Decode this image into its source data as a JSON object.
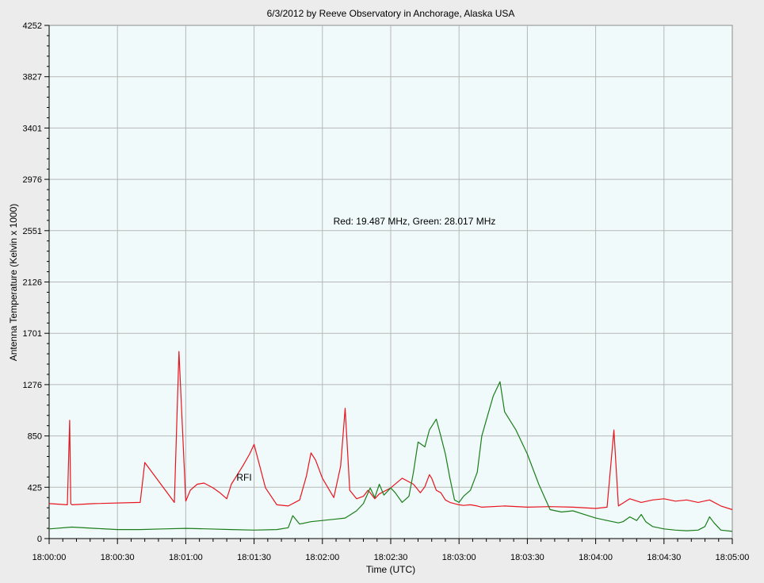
{
  "chart_data": {
    "type": "line",
    "title": "6/3/2012  by  Reeve Observatory  in  Anchorage, Alaska  USA",
    "xlabel": "Time (UTC)",
    "ylabel": "Antenna Temperature (Kelvin x 1000)",
    "annotation": "Red: 19.487 MHz, Green: 28.017 MHz",
    "rfi_label": "RFI",
    "x_ticks": [
      "18:00:00",
      "18:00:30",
      "18:01:00",
      "18:01:30",
      "18:02:00",
      "18:02:30",
      "18:03:00",
      "18:03:30",
      "18:04:00",
      "18:04:30",
      "18:05:00"
    ],
    "y_ticks": [
      "0",
      "425",
      "850",
      "1276",
      "1701",
      "2126",
      "2551",
      "2976",
      "3401",
      "3827",
      "4252"
    ],
    "xlim_seconds": [
      0,
      300
    ],
    "ylim": [
      0,
      4252
    ],
    "grid": true,
    "background_color": "#f0fafa",
    "series": [
      {
        "color": "#e8141e",
        "x_seconds": [
          0,
          8,
          9,
          9.5,
          10,
          20,
          40,
          42,
          55,
          57,
          60,
          62,
          65,
          68,
          70,
          72,
          75,
          78,
          80,
          85,
          88,
          90,
          95,
          100,
          105,
          110,
          113,
          115,
          117,
          120,
          125,
          128,
          130,
          132,
          135,
          138,
          140,
          141,
          143,
          145,
          150,
          155,
          160,
          163,
          165,
          167,
          168,
          170,
          172,
          174,
          176,
          178,
          180,
          182,
          185,
          188,
          190,
          200,
          210,
          220,
          230,
          240,
          245,
          248,
          250,
          255,
          260,
          265,
          270,
          275,
          280,
          285,
          290,
          295,
          300
        ],
        "values": [
          290,
          280,
          980,
          290,
          280,
          290,
          300,
          630,
          300,
          1550,
          310,
          400,
          450,
          460,
          440,
          420,
          380,
          330,
          450,
          600,
          700,
          780,
          420,
          280,
          270,
          320,
          520,
          710,
          650,
          500,
          340,
          600,
          1080,
          400,
          330,
          350,
          400,
          380,
          330,
          370,
          420,
          500,
          450,
          380,
          430,
          530,
          500,
          400,
          380,
          320,
          300,
          290,
          280,
          275,
          280,
          270,
          260,
          270,
          260,
          265,
          260,
          250,
          260,
          900,
          270,
          330,
          300,
          320,
          330,
          310,
          320,
          300,
          320,
          270,
          240
        ]
      },
      {
        "color": "#1a7d1a",
        "x_seconds": [
          0,
          10,
          20,
          30,
          40,
          50,
          60,
          70,
          80,
          90,
          100,
          105,
          107,
          110,
          115,
          120,
          125,
          130,
          135,
          138,
          141,
          143,
          145,
          147,
          150,
          152,
          155,
          158,
          160,
          162,
          165,
          167,
          170,
          172,
          174,
          176,
          178,
          180,
          182,
          185,
          188,
          190,
          195,
          198,
          200,
          205,
          210,
          215,
          220,
          225,
          230,
          235,
          240,
          245,
          250,
          252,
          255,
          258,
          260,
          262,
          265,
          270,
          275,
          280,
          285,
          288,
          290,
          292,
          295,
          300
        ],
        "values": [
          80,
          95,
          85,
          75,
          75,
          80,
          85,
          80,
          75,
          70,
          75,
          90,
          190,
          120,
          140,
          150,
          160,
          170,
          230,
          290,
          420,
          340,
          450,
          360,
          420,
          380,
          300,
          350,
          550,
          800,
          760,
          900,
          990,
          850,
          700,
          500,
          320,
          300,
          350,
          400,
          550,
          850,
          1180,
          1300,
          1050,
          900,
          700,
          450,
          240,
          220,
          230,
          200,
          170,
          150,
          130,
          140,
          180,
          150,
          200,
          140,
          100,
          80,
          70,
          65,
          70,
          100,
          180,
          130,
          70,
          60
        ]
      }
    ]
  }
}
